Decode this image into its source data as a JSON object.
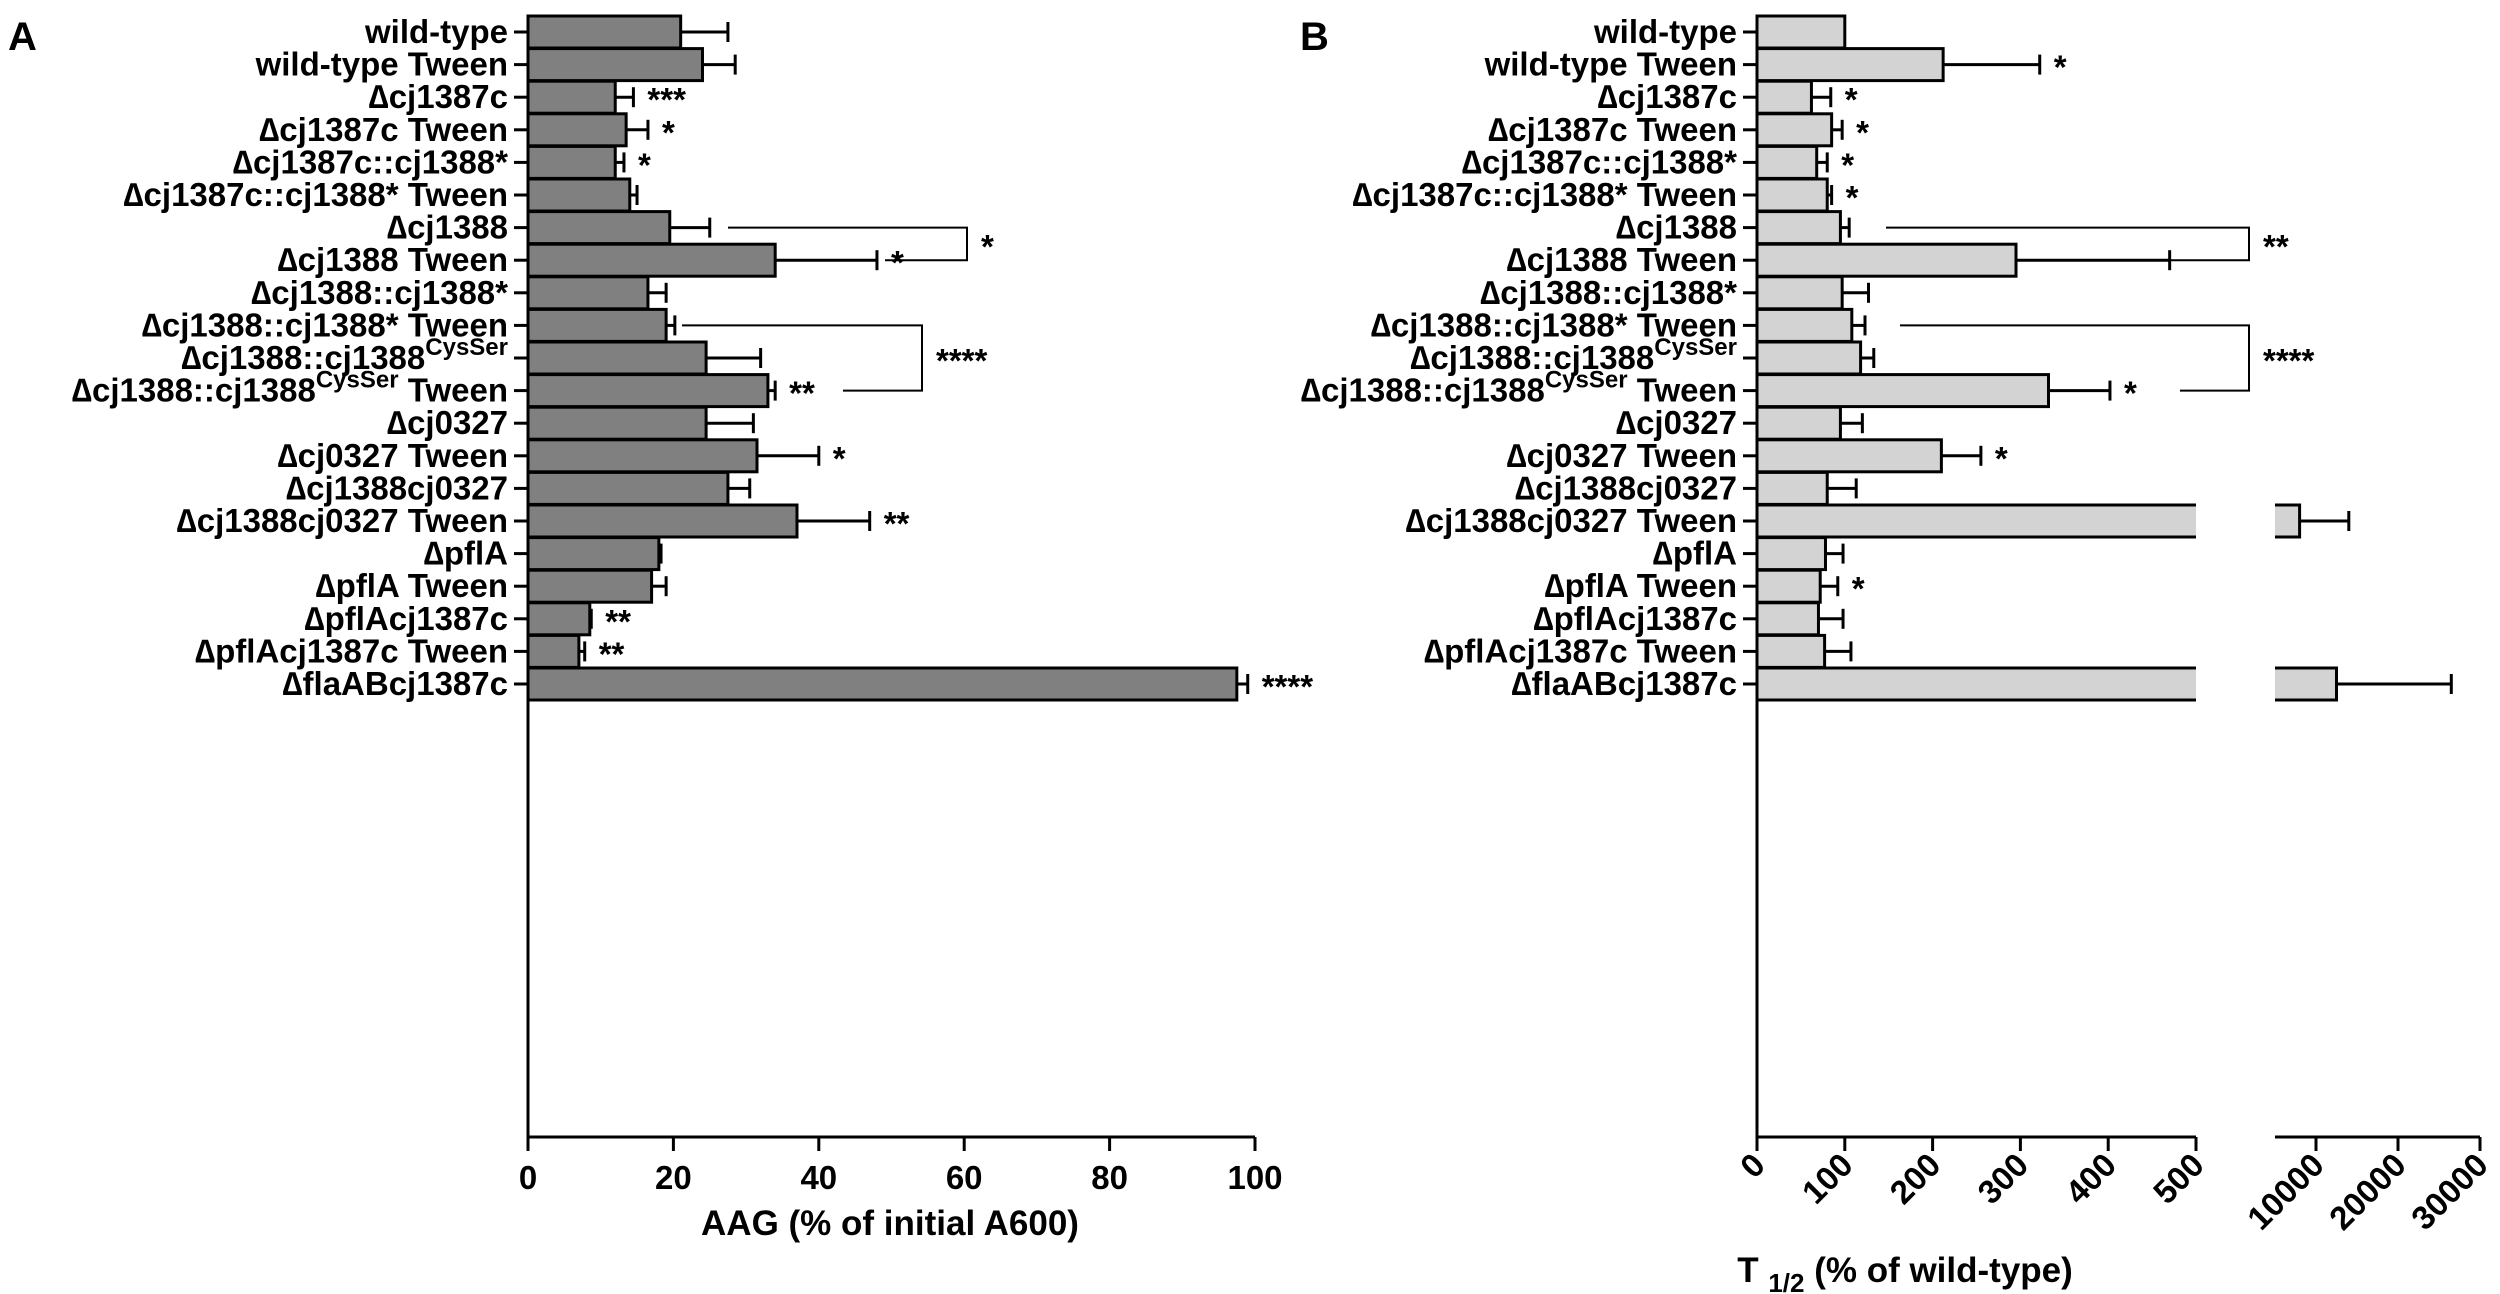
{
  "figure": {
    "panels": [
      "A",
      "B"
    ]
  },
  "chart_data": [
    {
      "panel": "A",
      "type": "bar",
      "orientation": "horizontal",
      "xlabel": "AAG (% of initial A600)",
      "xlim": [
        0,
        100
      ],
      "xticks": [
        0,
        20,
        40,
        60,
        80,
        100
      ],
      "bar_color": "#808080",
      "categories": [
        "wild-type",
        "wild-type Tween",
        "∆cj1387c",
        "∆cj1387c Tween",
        "∆cj1387c::cj1388*",
        "∆cj1387c::cj1388* Tween",
        "∆cj1388",
        "∆cj1388 Tween",
        "∆cj1388::cj1388*",
        "∆cj1388::cj1388* Tween",
        "∆cj1388::cj1388^CysSer",
        "∆cj1388::cj1388^CysSer Tween",
        "∆cj0327",
        "∆cj0327 Tween",
        "∆cj1388cj0327",
        "∆cj1388cj0327 Tween",
        "∆pflA",
        "∆pflA Tween",
        "∆pflAcj1387c",
        "∆pflAcj1387c Tween",
        "∆flaABcj1387c"
      ],
      "values": [
        21,
        24,
        12,
        13.5,
        12,
        14,
        19.5,
        34,
        16.5,
        19,
        24.5,
        33,
        24.5,
        31.5,
        27.5,
        37,
        18,
        17,
        8.5,
        7,
        97.5
      ],
      "errors": [
        6.5,
        4.5,
        2.5,
        3,
        1.2,
        1,
        5.5,
        14,
        2.5,
        1.2,
        7.5,
        1,
        6.5,
        8.5,
        3,
        10,
        0.3,
        2,
        0.2,
        0.8,
        1.5
      ],
      "significance": [
        "",
        "",
        "***",
        "*",
        "*",
        "",
        "",
        "*",
        "",
        "",
        "",
        "**",
        "",
        "*",
        "",
        "**",
        "",
        "",
        "**",
        "**",
        "****"
      ],
      "brackets": [
        {
          "rows": [
            6,
            7
          ],
          "label": "*"
        },
        {
          "rows": [
            9,
            11
          ],
          "label": "****"
        }
      ]
    },
    {
      "panel": "B",
      "type": "bar",
      "orientation": "horizontal",
      "xlabel": "T 1/2 (% of wild-type)",
      "axis_break": true,
      "xlim_segment1": [
        0,
        500
      ],
      "xlim_segment2": [
        5000,
        30000
      ],
      "xticks_segment1": [
        0,
        100,
        200,
        300,
        400,
        500
      ],
      "xticks_segment2": [
        10000,
        20000,
        30000
      ],
      "bar_color": "#d3d3d3",
      "categories": [
        "wild-type",
        "wild-type Tween",
        "∆cj1387c",
        "∆cj1387c Tween",
        "∆cj1387c::cj1388*",
        "∆cj1387c::cj1388* Tween",
        "∆cj1388",
        "∆cj1388 Tween",
        "∆cj1388::cj1388*",
        "∆cj1388::cj1388* Tween",
        "∆cj1388::cj1388^CysSer",
        "∆cj1388::cj1388^CysSer Tween",
        "∆cj0327",
        "∆cj0327 Tween",
        "∆cj1388cj0327",
        "∆cj1388cj0327 Tween",
        "∆pflA",
        "∆pflA Tween",
        "∆pflAcj1387c",
        "∆pflAcj1387c Tween",
        "∆flaABcj1387c"
      ],
      "values": [
        100,
        212,
        62,
        85,
        68,
        80,
        95,
        295,
        97,
        108,
        118,
        332,
        95,
        210,
        80,
        8000,
        78,
        72,
        70,
        77,
        12500
      ],
      "errors": [
        0,
        110,
        22,
        12,
        12,
        5,
        10,
        175,
        30,
        15,
        15,
        70,
        25,
        45,
        33,
        6000,
        20,
        20,
        28,
        30,
        14000
      ],
      "significance": [
        "",
        "*",
        "*",
        "*",
        "*",
        "*",
        "",
        "",
        "",
        "",
        "",
        "*",
        "",
        "*",
        "",
        "",
        "",
        "*",
        "",
        "",
        ""
      ],
      "brackets": [
        {
          "rows": [
            6,
            7
          ],
          "label": "**"
        },
        {
          "rows": [
            9,
            11
          ],
          "label": "****"
        }
      ]
    }
  ]
}
